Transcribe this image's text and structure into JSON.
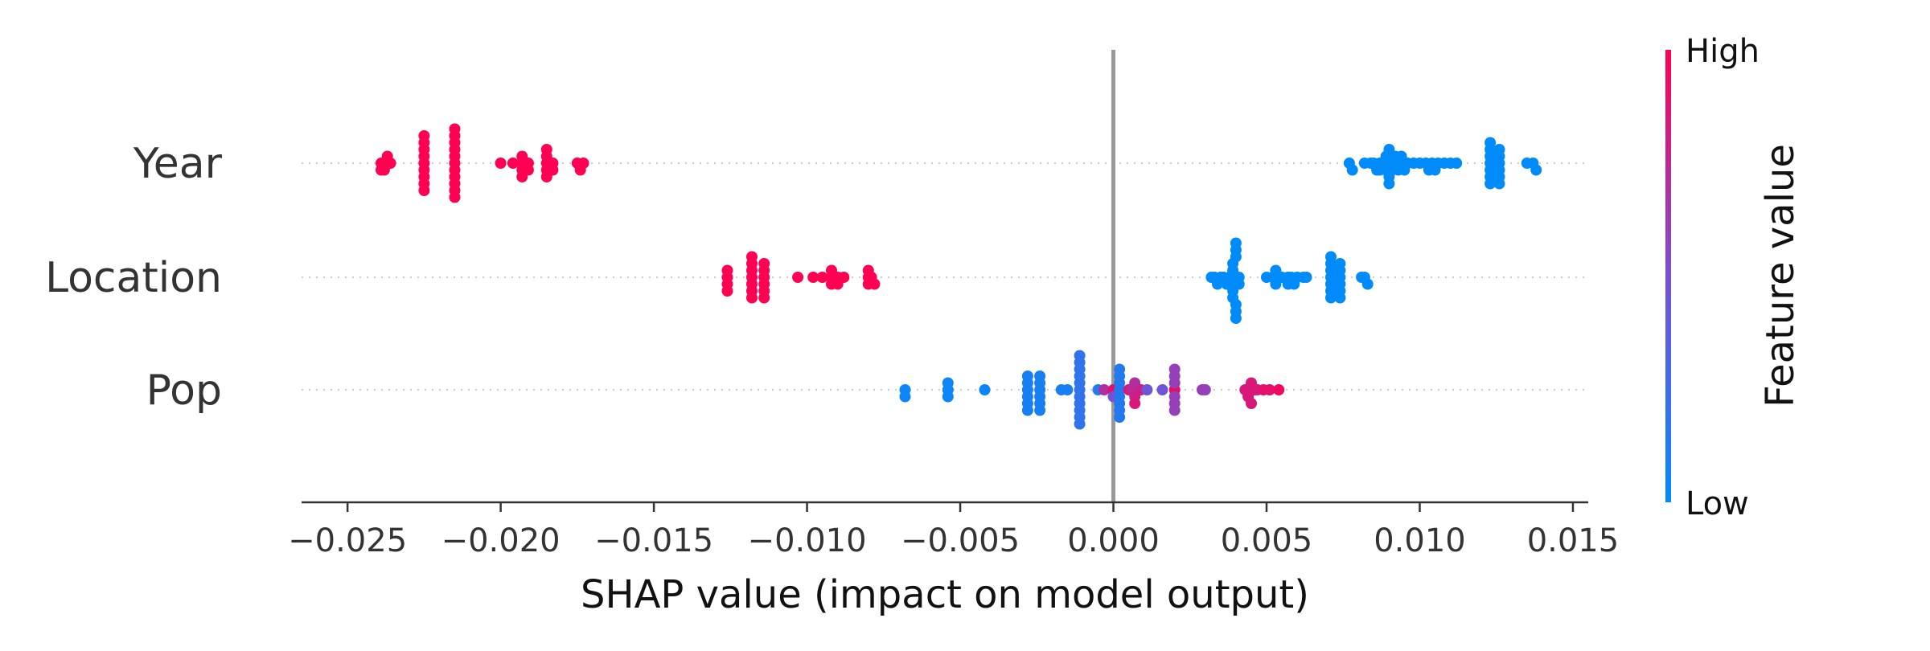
{
  "chart_data": {
    "type": "scatter",
    "title": "",
    "xlabel": "SHAP value (impact on model output)",
    "xlim": [
      -0.0265,
      0.0155
    ],
    "xticks": [
      -0.025,
      -0.02,
      -0.015,
      -0.01,
      -0.005,
      0.0,
      0.005,
      0.01,
      0.015
    ],
    "xtick_labels": [
      "−0.025",
      "−0.020",
      "−0.015",
      "−0.010",
      "−0.005",
      "0.000",
      "0.005",
      "0.010",
      "0.015"
    ],
    "features": [
      "Year",
      "Location",
      "Pop"
    ],
    "zero_line": 0.0,
    "grid": false,
    "colorbar": {
      "label": "Feature value",
      "high_label": "High",
      "low_label": "Low",
      "high_color": "#ff0052",
      "low_color": "#008bfb"
    },
    "series": [
      {
        "feature": "Year",
        "points": [
          [
            -0.0239,
            1
          ],
          [
            -0.0239,
            1
          ],
          [
            -0.0238,
            1
          ],
          [
            -0.0238,
            1
          ],
          [
            -0.0237,
            1
          ],
          [
            -0.0236,
            1
          ],
          [
            -0.0225,
            1
          ],
          [
            -0.0225,
            1
          ],
          [
            -0.0225,
            1
          ],
          [
            -0.0225,
            1
          ],
          [
            -0.0225,
            1
          ],
          [
            -0.0225,
            1
          ],
          [
            -0.0225,
            1
          ],
          [
            -0.0225,
            1
          ],
          [
            -0.0225,
            1
          ],
          [
            -0.0215,
            1
          ],
          [
            -0.0215,
            1
          ],
          [
            -0.0215,
            1
          ],
          [
            -0.0215,
            1
          ],
          [
            -0.0215,
            1
          ],
          [
            -0.0215,
            1
          ],
          [
            -0.0215,
            1
          ],
          [
            -0.0215,
            1
          ],
          [
            -0.0215,
            1
          ],
          [
            -0.0215,
            1
          ],
          [
            -0.0215,
            1
          ],
          [
            -0.02,
            1
          ],
          [
            -0.0196,
            1
          ],
          [
            -0.0193,
            1
          ],
          [
            -0.0193,
            1
          ],
          [
            -0.0193,
            1
          ],
          [
            -0.0193,
            1
          ],
          [
            -0.0191,
            1
          ],
          [
            -0.0191,
            1
          ],
          [
            -0.0185,
            1
          ],
          [
            -0.0185,
            1
          ],
          [
            -0.0185,
            1
          ],
          [
            -0.0185,
            1
          ],
          [
            -0.0185,
            1
          ],
          [
            -0.0183,
            1
          ],
          [
            -0.0183,
            1
          ],
          [
            -0.0175,
            1
          ],
          [
            -0.0174,
            1
          ],
          [
            -0.0173,
            1
          ],
          [
            0.0077,
            0
          ],
          [
            0.0078,
            0
          ],
          [
            0.0082,
            0
          ],
          [
            0.0084,
            0
          ],
          [
            0.0085,
            0
          ],
          [
            0.0086,
            0
          ],
          [
            0.0087,
            0
          ],
          [
            0.0087,
            0
          ],
          [
            0.0089,
            0
          ],
          [
            0.0089,
            0
          ],
          [
            0.0089,
            0
          ],
          [
            0.009,
            0
          ],
          [
            0.009,
            0
          ],
          [
            0.009,
            0
          ],
          [
            0.009,
            0
          ],
          [
            0.009,
            0
          ],
          [
            0.009,
            0
          ],
          [
            0.0091,
            0
          ],
          [
            0.0091,
            0
          ],
          [
            0.0092,
            0
          ],
          [
            0.0093,
            0
          ],
          [
            0.0093,
            0
          ],
          [
            0.0094,
            0
          ],
          [
            0.0095,
            0
          ],
          [
            0.0095,
            0
          ],
          [
            0.0096,
            0
          ],
          [
            0.0098,
            0
          ],
          [
            0.01,
            0
          ],
          [
            0.0102,
            0
          ],
          [
            0.0103,
            0
          ],
          [
            0.0104,
            0
          ],
          [
            0.0105,
            0
          ],
          [
            0.0106,
            0
          ],
          [
            0.0108,
            0
          ],
          [
            0.011,
            0
          ],
          [
            0.0112,
            0
          ],
          [
            0.0123,
            0
          ],
          [
            0.0123,
            0
          ],
          [
            0.0123,
            0
          ],
          [
            0.0123,
            0
          ],
          [
            0.0123,
            0
          ],
          [
            0.0123,
            0
          ],
          [
            0.0123,
            0
          ],
          [
            0.0126,
            0
          ],
          [
            0.0126,
            0
          ],
          [
            0.0126,
            0
          ],
          [
            0.0126,
            0
          ],
          [
            0.0126,
            0
          ],
          [
            0.0126,
            0
          ],
          [
            0.0135,
            0
          ],
          [
            0.0137,
            0
          ],
          [
            0.0138,
            0
          ]
        ]
      },
      {
        "feature": "Location",
        "points": [
          [
            -0.0126,
            1
          ],
          [
            -0.0126,
            1
          ],
          [
            -0.0126,
            1
          ],
          [
            -0.0126,
            1
          ],
          [
            -0.0118,
            1
          ],
          [
            -0.0118,
            1
          ],
          [
            -0.0118,
            1
          ],
          [
            -0.0118,
            1
          ],
          [
            -0.0118,
            1
          ],
          [
            -0.0118,
            1
          ],
          [
            -0.0118,
            1
          ],
          [
            -0.0114,
            1
          ],
          [
            -0.0114,
            1
          ],
          [
            -0.0114,
            1
          ],
          [
            -0.0114,
            1
          ],
          [
            -0.0114,
            1
          ],
          [
            -0.0114,
            1
          ],
          [
            -0.0103,
            1
          ],
          [
            -0.0098,
            1
          ],
          [
            -0.0095,
            1
          ],
          [
            -0.0092,
            1
          ],
          [
            -0.0092,
            1
          ],
          [
            -0.0092,
            1
          ],
          [
            -0.009,
            1
          ],
          [
            -0.009,
            1
          ],
          [
            -0.0088,
            1
          ],
          [
            -0.008,
            1
          ],
          [
            -0.008,
            1
          ],
          [
            -0.008,
            1
          ],
          [
            -0.0079,
            1
          ],
          [
            -0.0078,
            1
          ],
          [
            0.0032,
            0
          ],
          [
            0.0033,
            0
          ],
          [
            0.0034,
            0
          ],
          [
            0.0035,
            0
          ],
          [
            0.0036,
            0
          ],
          [
            0.0037,
            0
          ],
          [
            0.0038,
            0
          ],
          [
            0.0038,
            0
          ],
          [
            0.0039,
            0
          ],
          [
            0.0039,
            0
          ],
          [
            0.0039,
            0
          ],
          [
            0.0039,
            0
          ],
          [
            0.0039,
            0
          ],
          [
            0.0039,
            0
          ],
          [
            0.004,
            0
          ],
          [
            0.004,
            0
          ],
          [
            0.004,
            0
          ],
          [
            0.004,
            0
          ],
          [
            0.004,
            0
          ],
          [
            0.004,
            0
          ],
          [
            0.0041,
            0
          ],
          [
            0.0041,
            0
          ],
          [
            0.005,
            0
          ],
          [
            0.0052,
            0
          ],
          [
            0.0053,
            0
          ],
          [
            0.0053,
            0
          ],
          [
            0.0055,
            0
          ],
          [
            0.0057,
            0
          ],
          [
            0.0057,
            0
          ],
          [
            0.0058,
            0
          ],
          [
            0.0059,
            0
          ],
          [
            0.006,
            0
          ],
          [
            0.0062,
            0
          ],
          [
            0.0063,
            0
          ],
          [
            0.0071,
            0
          ],
          [
            0.0071,
            0
          ],
          [
            0.0071,
            0
          ],
          [
            0.0071,
            0
          ],
          [
            0.0071,
            0
          ],
          [
            0.0071,
            0
          ],
          [
            0.0071,
            0
          ],
          [
            0.0074,
            0
          ],
          [
            0.0074,
            0
          ],
          [
            0.0074,
            0
          ],
          [
            0.0074,
            0
          ],
          [
            0.0074,
            0
          ],
          [
            0.0074,
            0
          ],
          [
            0.0081,
            0
          ],
          [
            0.0082,
            0
          ],
          [
            0.0083,
            0
          ]
        ]
      },
      {
        "feature": "Pop",
        "points": [
          [
            -0.0068,
            0.05
          ],
          [
            -0.0068,
            0.05
          ],
          [
            -0.0054,
            0.05
          ],
          [
            -0.0054,
            0.05
          ],
          [
            -0.0054,
            0.05
          ],
          [
            -0.0042,
            0.05
          ],
          [
            -0.0028,
            0.1
          ],
          [
            -0.0028,
            0.1
          ],
          [
            -0.0028,
            0.1
          ],
          [
            -0.0028,
            0.1
          ],
          [
            -0.0028,
            0.1
          ],
          [
            -0.0028,
            0.1
          ],
          [
            -0.0024,
            0.1
          ],
          [
            -0.0024,
            0.1
          ],
          [
            -0.0024,
            0.1
          ],
          [
            -0.0024,
            0.1
          ],
          [
            -0.0024,
            0.1
          ],
          [
            -0.0024,
            0.1
          ],
          [
            -0.0017,
            0.1
          ],
          [
            -0.0015,
            0.1
          ],
          [
            -0.0011,
            0.2
          ],
          [
            -0.0011,
            0.2
          ],
          [
            -0.0011,
            0.2
          ],
          [
            -0.0011,
            0.2
          ],
          [
            -0.0011,
            0.2
          ],
          [
            -0.0011,
            0.2
          ],
          [
            -0.0011,
            0.2
          ],
          [
            -0.0011,
            0.2
          ],
          [
            -0.0011,
            0.2
          ],
          [
            -0.0011,
            0.2
          ],
          [
            -0.0011,
            0.2
          ],
          [
            -0.0005,
            0.15
          ],
          [
            -0.0003,
            0.7
          ],
          [
            0.0,
            0.9
          ],
          [
            0.0,
            0.5
          ],
          [
            0.0002,
            0.15
          ],
          [
            0.0002,
            0.15
          ],
          [
            0.0002,
            0.15
          ],
          [
            0.0002,
            0.15
          ],
          [
            0.0002,
            0.15
          ],
          [
            0.0002,
            0.15
          ],
          [
            0.0002,
            0.15
          ],
          [
            0.0002,
            0.15
          ],
          [
            0.0005,
            0.85
          ],
          [
            0.0006,
            0.75
          ],
          [
            0.0007,
            0.8
          ],
          [
            0.0007,
            0.7
          ],
          [
            0.0007,
            0.85
          ],
          [
            0.0009,
            0.8
          ],
          [
            0.0011,
            0.45
          ],
          [
            0.0016,
            0.45
          ],
          [
            0.002,
            0.95
          ],
          [
            0.002,
            0.6
          ],
          [
            0.002,
            0.6
          ],
          [
            0.002,
            0.6
          ],
          [
            0.002,
            0.6
          ],
          [
            0.002,
            0.6
          ],
          [
            0.002,
            0.6
          ],
          [
            0.0029,
            0.6
          ],
          [
            0.003,
            0.6
          ],
          [
            0.0043,
            0.85
          ],
          [
            0.0044,
            0.85
          ],
          [
            0.0044,
            0.85
          ],
          [
            0.0045,
            0.85
          ],
          [
            0.0045,
            0.85
          ],
          [
            0.0046,
            0.85
          ],
          [
            0.0047,
            0.85
          ],
          [
            0.0049,
            0.9
          ],
          [
            0.0051,
            0.9
          ],
          [
            0.0054,
            0.95
          ]
        ]
      }
    ]
  }
}
